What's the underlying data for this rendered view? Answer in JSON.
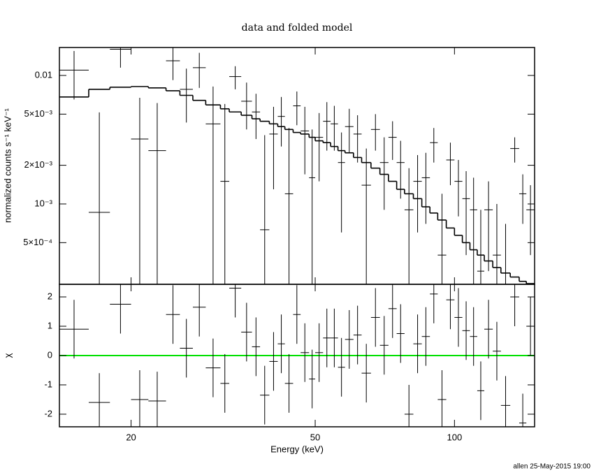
{
  "chart_data": [
    {
      "type": "errorbar-step",
      "title": "data and folded model",
      "ylabel": "normalized counts s⁻¹ keV⁻¹",
      "log_x": true,
      "log_y": true,
      "xlim": [
        14,
        149
      ],
      "ylim": [
        0.000237,
        0.0165
      ],
      "xticks": [
        20,
        50,
        100
      ],
      "yticks": [
        {
          "value": 0.0005,
          "label": "5×10⁻⁴"
        },
        {
          "value": 0.001,
          "label": "10⁻³"
        },
        {
          "value": 0.002,
          "label": "2×10⁻³"
        },
        {
          "value": 0.005,
          "label": "5×10⁻³"
        },
        0.01
      ],
      "bin_edges": [
        14,
        16.2,
        18.0,
        20.0,
        21.8,
        23.8,
        25.5,
        27.2,
        29.0,
        31.2,
        32.6,
        34.6,
        36.5,
        38.0,
        39.8,
        41.5,
        43.0,
        44.8,
        46.5,
        48.5,
        50.0,
        52.0,
        54.0,
        56.0,
        58.0,
        60.5,
        63.0,
        66.0,
        69.0,
        72.0,
        75.0,
        78.0,
        81.5,
        85.0,
        88.5,
        92.0,
        96.0,
        100,
        104,
        108,
        112,
        116,
        121,
        126,
        132,
        138,
        143,
        149
      ],
      "values": [
        0.011,
        0.00086,
        0.016,
        0.0032,
        0.0026,
        0.013,
        0.0078,
        0.0115,
        0.0042,
        0.0015,
        0.0098,
        0.0063,
        0.0052,
        0.00063,
        0.0035,
        0.0048,
        0.0012,
        0.0058,
        0.0037,
        0.0016,
        0.0033,
        0.0044,
        0.0042,
        0.0021,
        0.004,
        0.0035,
        0.0014,
        0.0038,
        0.0021,
        0.0033,
        0.0021,
        0.0009,
        0.0015,
        0.0016,
        0.003,
        0.0004,
        0.0022,
        0.0015,
        0.0011,
        0.0009,
        0.0003,
        0.0009,
        0.0004,
        0.0001,
        0.0027,
        0.0012,
        0.0009
      ],
      "errors": [
        0.0045,
        0.0043,
        0.0045,
        0.0035,
        0.0035,
        0.0038,
        0.0035,
        0.0035,
        0.004,
        0.0045,
        0.002,
        0.0025,
        0.002,
        0.0028,
        0.0022,
        0.002,
        0.0027,
        0.0017,
        0.002,
        0.0022,
        0.0018,
        0.0018,
        0.0016,
        0.0015,
        0.0015,
        0.0014,
        0.0013,
        0.0012,
        0.0012,
        0.0011,
        0.001,
        0.001,
        0.0009,
        0.0009,
        0.0009,
        0.0008,
        0.0008,
        0.0007,
        0.0007,
        0.0007,
        0.0006,
        0.0006,
        0.0006,
        0.0006,
        0.0006,
        0.0005,
        0.0005
      ],
      "model": [
        0.0068,
        0.0078,
        0.0081,
        0.0082,
        0.008,
        0.0076,
        0.007,
        0.0064,
        0.0059,
        0.0055,
        0.0052,
        0.0049,
        0.0046,
        0.0044,
        0.0042,
        0.004,
        0.0038,
        0.0036,
        0.0035,
        0.0033,
        0.0031,
        0.003,
        0.0028,
        0.0026,
        0.0025,
        0.0023,
        0.0021,
        0.0019,
        0.0017,
        0.0015,
        0.0013,
        0.0012,
        0.0011,
        0.00095,
        0.00085,
        0.00075,
        0.00065,
        0.00057,
        0.0005,
        0.00044,
        0.0004,
        0.00036,
        0.00032,
        0.00029,
        0.00027,
        0.00025,
        0.00024
      ],
      "color": "#000000"
    },
    {
      "type": "residual",
      "ylabel": "χ",
      "xlabel": "Energy (keV)",
      "log_x": true,
      "xlim": [
        14,
        149
      ],
      "ylim": [
        -2.43,
        2.43
      ],
      "xticks": [
        20,
        50,
        100
      ],
      "yticks": [
        -2,
        -1,
        0,
        1,
        2
      ],
      "bin_edges": [
        14,
        16.2,
        18.0,
        20.0,
        21.8,
        23.8,
        25.5,
        27.2,
        29.0,
        31.2,
        32.6,
        34.6,
        36.5,
        38.0,
        39.8,
        41.5,
        43.0,
        44.8,
        46.5,
        48.5,
        50.0,
        52.0,
        54.0,
        56.0,
        58.0,
        60.5,
        63.0,
        66.0,
        69.0,
        72.0,
        75.0,
        78.0,
        81.5,
        85.0,
        88.5,
        92.0,
        96.0,
        100,
        104,
        108,
        112,
        116,
        121,
        126,
        132,
        138,
        143,
        149
      ],
      "values": [
        0.9,
        -1.6,
        1.75,
        -1.5,
        -1.55,
        1.4,
        0.25,
        1.65,
        -0.42,
        -0.95,
        2.3,
        0.8,
        0.3,
        -1.35,
        -0.2,
        0.4,
        -0.95,
        1.4,
        0.1,
        -0.8,
        0.1,
        0.6,
        0.6,
        -0.4,
        0.55,
        0.7,
        -0.6,
        1.3,
        0.35,
        1.6,
        0.75,
        -2.0,
        0.4,
        0.65,
        2.1,
        -1.5,
        1.9,
        1.3,
        0.85,
        0.65,
        -1.2,
        0.9,
        0.15,
        -1.7,
        2.0,
        -2.3,
        1.0
      ],
      "error": 1,
      "reference_line": 0,
      "reference_color": "#00e000",
      "color": "#000000"
    }
  ],
  "footer": "allen 25-May-2015 19:00"
}
